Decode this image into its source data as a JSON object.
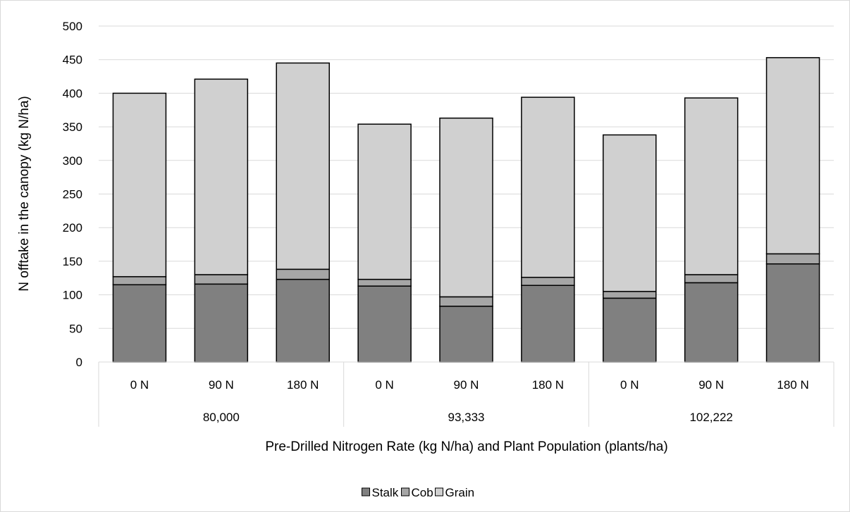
{
  "chart_data": {
    "type": "bar",
    "stacked": true,
    "title": "",
    "xlabel": "Pre-Drilled Nitrogen Rate (kg N/ha) and Plant Population (plants/ha)",
    "ylabel": "N offtake in the canopy (kg N/ha)",
    "ylim": [
      0,
      500
    ],
    "y_ticks": [
      0,
      50,
      100,
      150,
      200,
      250,
      300,
      350,
      400,
      450,
      500
    ],
    "grid": true,
    "legend_position": "bottom",
    "categories": [
      "0 N",
      "90 N",
      "180 N",
      "0 N",
      "90 N",
      "180 N",
      "0 N",
      "90 N",
      "180 N"
    ],
    "groups": [
      {
        "label": "80,000",
        "categories": [
          "0 N",
          "90 N",
          "180 N"
        ]
      },
      {
        "label": "93,333",
        "categories": [
          "0 N",
          "90 N",
          "180 N"
        ]
      },
      {
        "label": "102,222",
        "categories": [
          "0 N",
          "90 N",
          "180 N"
        ]
      }
    ],
    "series": [
      {
        "name": "Stalk",
        "color": "#808080",
        "values": [
          115,
          116,
          123,
          113,
          83,
          114,
          95,
          118,
          146
        ]
      },
      {
        "name": "Cob",
        "color": "#a6a6a6",
        "values": [
          12,
          14,
          15,
          10,
          14,
          12,
          10,
          12,
          15
        ]
      },
      {
        "name": "Grain",
        "color": "#d0d0d0",
        "values": [
          273,
          291,
          307,
          231,
          266,
          268,
          233,
          263,
          292
        ]
      }
    ]
  }
}
